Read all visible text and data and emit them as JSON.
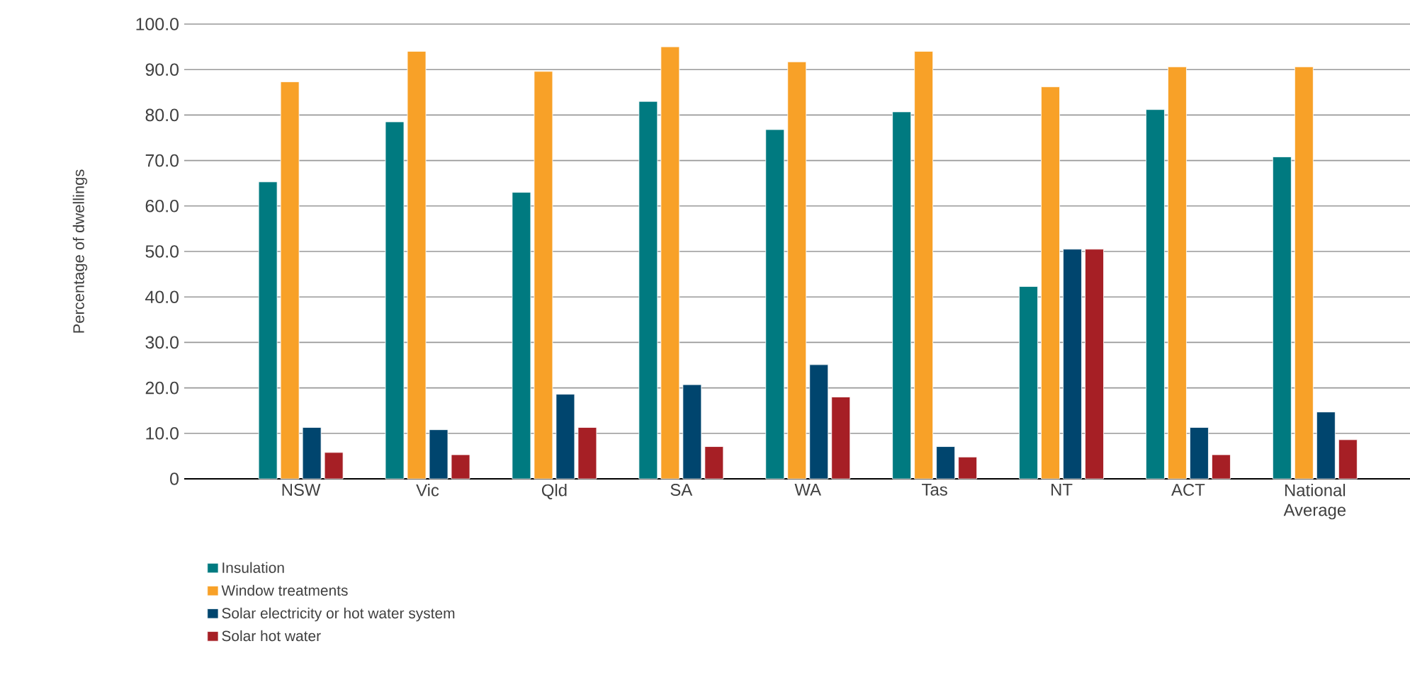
{
  "chart_data": {
    "type": "bar",
    "ylabel": "Percentage of dwellings",
    "categories": [
      "NSW",
      "Vic",
      "Qld",
      "SA",
      "WA",
      "Tas",
      "NT",
      "ACT",
      "National Average"
    ],
    "series": [
      {
        "name": "Insulation",
        "color": "#007a80",
        "values": [
          65.3,
          78.5,
          63.0,
          83.0,
          76.8,
          80.7,
          42.3,
          81.2,
          70.8
        ]
      },
      {
        "name": "Window treatments",
        "color": "#f8a128",
        "values": [
          87.3,
          94.0,
          89.6,
          95.0,
          91.7,
          94.0,
          86.2,
          90.6,
          90.6
        ]
      },
      {
        "name": "Solar electricity or hot water system",
        "color": "#00456e",
        "values": [
          11.3,
          10.8,
          18.6,
          20.7,
          25.1,
          7.1,
          50.5,
          11.3,
          14.7
        ]
      },
      {
        "name": "Solar hot water",
        "color": "#a61f25",
        "values": [
          5.8,
          5.3,
          11.3,
          7.1,
          18.0,
          4.8,
          50.5,
          5.3,
          8.6
        ]
      }
    ],
    "ylim": [
      0,
      100
    ],
    "yticks": [
      {
        "value": 0,
        "label": "0"
      },
      {
        "value": 10,
        "label": "10.0"
      },
      {
        "value": 20,
        "label": "20.0"
      },
      {
        "value": 30,
        "label": "30.0"
      },
      {
        "value": 40,
        "label": "40.0"
      },
      {
        "value": 50,
        "label": "50.0"
      },
      {
        "value": 60,
        "label": "60.0"
      },
      {
        "value": 70,
        "label": "70.0"
      },
      {
        "value": 80,
        "label": "80.0"
      },
      {
        "value": 90,
        "label": "90.0"
      },
      {
        "value": 100,
        "label": "100.0"
      }
    ],
    "grid": "y",
    "legend": "bottom left"
  }
}
